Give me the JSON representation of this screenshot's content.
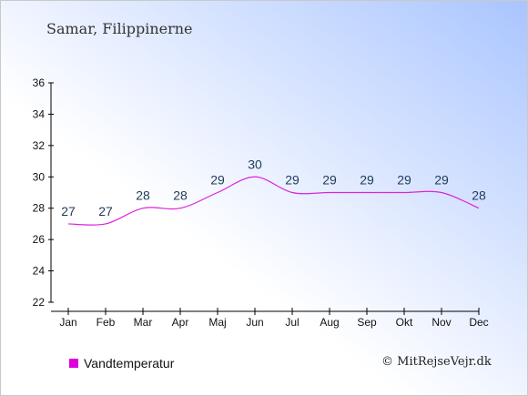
{
  "header": {
    "title": "Samar, Filippinerne"
  },
  "legend": {
    "label": "Vandtemperatur",
    "color": "#dd00dd"
  },
  "footer": {
    "credit": "© MitRejseVejr.dk"
  },
  "colors": {
    "line": "#dd22dd",
    "axis": "#000000",
    "label": "#1f3a5a"
  },
  "chart_data": {
    "type": "line",
    "categories": [
      "Jan",
      "Feb",
      "Mar",
      "Apr",
      "Maj",
      "Jun",
      "Jul",
      "Aug",
      "Sep",
      "Okt",
      "Nov",
      "Dec"
    ],
    "series": [
      {
        "name": "Vandtemperatur",
        "values": [
          27,
          27,
          28,
          28,
          29,
          30,
          29,
          29,
          29,
          29,
          29,
          28
        ]
      }
    ],
    "data_labels": [
      "27",
      "27",
      "28",
      "28",
      "29",
      "30",
      "29",
      "29",
      "29",
      "29",
      "29",
      "28"
    ],
    "ylim": [
      22,
      36
    ],
    "yticks": [
      22,
      24,
      26,
      28,
      30,
      32,
      34,
      36
    ],
    "grid": false,
    "legend_position": "bottom-left"
  }
}
